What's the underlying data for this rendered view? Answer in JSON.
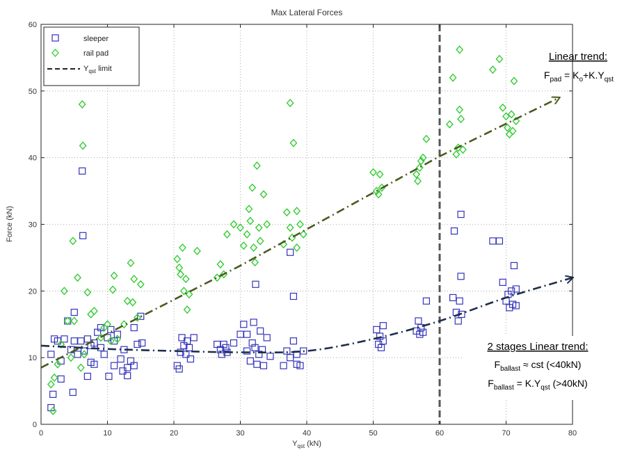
{
  "chart_data": {
    "type": "scatter",
    "title": "Max Lateral Forces",
    "xlabel": "Y",
    "xlabel_sub": "qst",
    "xlabel_unit": " (kN)",
    "ylabel": "Force (kN)",
    "xlim": [
      0,
      80
    ],
    "ylim": [
      0,
      60
    ],
    "xticks": [
      0,
      10,
      20,
      30,
      40,
      50,
      60,
      70,
      80
    ],
    "yticks": [
      0,
      10,
      20,
      30,
      40,
      50,
      60
    ],
    "grid": true,
    "legend_position": "top-left",
    "limit_line": {
      "name": "Y",
      "name_sub": "qst",
      "name_suffix": " limit",
      "x": 60,
      "color": "#555555"
    },
    "series": [
      {
        "name": "sleeper",
        "marker": "square",
        "color": "#3333bb",
        "points": [
          [
            1.5,
            10.5
          ],
          [
            1.8,
            4.5
          ],
          [
            1.5,
            2.5
          ],
          [
            2,
            12.8
          ],
          [
            2.5,
            12.5
          ],
          [
            3,
            9.5
          ],
          [
            3,
            6.8
          ],
          [
            3.5,
            12.8
          ],
          [
            4,
            15.5
          ],
          [
            4.5,
            11.2
          ],
          [
            4.8,
            4.8
          ],
          [
            5,
            16.8
          ],
          [
            5,
            12.5
          ],
          [
            5.5,
            10.5
          ],
          [
            6,
            12.5
          ],
          [
            6.2,
            38
          ],
          [
            6.3,
            28.3
          ],
          [
            6.5,
            11
          ],
          [
            7,
            7.2
          ],
          [
            7,
            12.8
          ],
          [
            7.5,
            11.8
          ],
          [
            7.5,
            9.3
          ],
          [
            8,
            9
          ],
          [
            8,
            12.2
          ],
          [
            8.5,
            13.8
          ],
          [
            9,
            11.5
          ],
          [
            9,
            14.5
          ],
          [
            9.5,
            10.5
          ],
          [
            10,
            13
          ],
          [
            10.2,
            7.2
          ],
          [
            10.5,
            14.2
          ],
          [
            11,
            8.8
          ],
          [
            11,
            12.5
          ],
          [
            11.5,
            13.5
          ],
          [
            12,
            9.8
          ],
          [
            12.3,
            8
          ],
          [
            12.5,
            11.2
          ],
          [
            13,
            7.3
          ],
          [
            13,
            8.5
          ],
          [
            13.5,
            9.5
          ],
          [
            14,
            14.5
          ],
          [
            14,
            8.8
          ],
          [
            14.5,
            12
          ],
          [
            15,
            16.2
          ],
          [
            15.2,
            12.2
          ],
          [
            20.5,
            8.8
          ],
          [
            20.8,
            8.3
          ],
          [
            21,
            10.8
          ],
          [
            21.2,
            13
          ],
          [
            21.5,
            11.8
          ],
          [
            21.8,
            10.5
          ],
          [
            22,
            12.5
          ],
          [
            22.3,
            11.5
          ],
          [
            22.5,
            9.8
          ],
          [
            23,
            13
          ],
          [
            26.5,
            12
          ],
          [
            27,
            11.2
          ],
          [
            27.2,
            10.5
          ],
          [
            27.5,
            12
          ],
          [
            27.8,
            11.5
          ],
          [
            28,
            10.8
          ],
          [
            29,
            12.2
          ],
          [
            30,
            13.5
          ],
          [
            30.5,
            15
          ],
          [
            31,
            11
          ],
          [
            31,
            13.5
          ],
          [
            31.5,
            9.5
          ],
          [
            31.8,
            12.2
          ],
          [
            32,
            15.3
          ],
          [
            32.2,
            11.5
          ],
          [
            32.3,
            21
          ],
          [
            32.5,
            9
          ],
          [
            32.8,
            10.5
          ],
          [
            33,
            14
          ],
          [
            33.3,
            11.2
          ],
          [
            33.5,
            8.8
          ],
          [
            34,
            13
          ],
          [
            34.5,
            10.2
          ],
          [
            36.5,
            8.8
          ],
          [
            37,
            11
          ],
          [
            37.5,
            10
          ],
          [
            37.5,
            25.8
          ],
          [
            38,
            12.5
          ],
          [
            38,
            19.2
          ],
          [
            38.5,
            10.5
          ],
          [
            38.5,
            9
          ],
          [
            39,
            8.8
          ],
          [
            39.5,
            11
          ],
          [
            50.5,
            14.2
          ],
          [
            50.8,
            12
          ],
          [
            51,
            13.2
          ],
          [
            51.2,
            11.5
          ],
          [
            51.5,
            14.8
          ],
          [
            51.5,
            12.5
          ],
          [
            56.5,
            14
          ],
          [
            56.8,
            15.5
          ],
          [
            57,
            13.5
          ],
          [
            57.2,
            14.5
          ],
          [
            57.5,
            13.8
          ],
          [
            58,
            18.5
          ],
          [
            62,
            19
          ],
          [
            62.2,
            29
          ],
          [
            62.5,
            16.8
          ],
          [
            62.8,
            15.5
          ],
          [
            63,
            18.5
          ],
          [
            63.2,
            31.5
          ],
          [
            63.2,
            22.2
          ],
          [
            63.3,
            16.5
          ],
          [
            68,
            27.5
          ],
          [
            69,
            27.5
          ],
          [
            69.5,
            21.3
          ],
          [
            70,
            18.5
          ],
          [
            70.3,
            19.5
          ],
          [
            70.5,
            17.5
          ],
          [
            70.8,
            20
          ],
          [
            71,
            18
          ],
          [
            71.2,
            23.8
          ],
          [
            71.5,
            20.3
          ],
          [
            71.5,
            17.8
          ]
        ]
      },
      {
        "name": "rail pad",
        "marker": "diamond",
        "color": "#33cc33",
        "points": [
          [
            1.5,
            6
          ],
          [
            1.8,
            2
          ],
          [
            2,
            7
          ],
          [
            2.5,
            9
          ],
          [
            3,
            12
          ],
          [
            3.5,
            20
          ],
          [
            4,
            15.5
          ],
          [
            4.5,
            10
          ],
          [
            4.8,
            27.5
          ],
          [
            5,
            15.5
          ],
          [
            5.5,
            22
          ],
          [
            6,
            8.5
          ],
          [
            6.2,
            48
          ],
          [
            6.3,
            41.8
          ],
          [
            6.5,
            10.5
          ],
          [
            7,
            19.8
          ],
          [
            7.5,
            16.5
          ],
          [
            8,
            17
          ],
          [
            9,
            13
          ],
          [
            9.5,
            14.5
          ],
          [
            10,
            15
          ],
          [
            10.5,
            12.5
          ],
          [
            10.8,
            20.2
          ],
          [
            11,
            22.3
          ],
          [
            11.5,
            12.8
          ],
          [
            12.5,
            15
          ],
          [
            13,
            18.5
          ],
          [
            13.5,
            24.2
          ],
          [
            13.8,
            18.3
          ],
          [
            14,
            21.8
          ],
          [
            14.5,
            16
          ],
          [
            15,
            21
          ],
          [
            20.5,
            24.8
          ],
          [
            20.8,
            23.5
          ],
          [
            21,
            22.5
          ],
          [
            21.3,
            26.5
          ],
          [
            21.5,
            20
          ],
          [
            21.8,
            21.8
          ],
          [
            22,
            17.2
          ],
          [
            22.3,
            19.5
          ],
          [
            23.5,
            26
          ],
          [
            26.5,
            22
          ],
          [
            27,
            24
          ],
          [
            27.5,
            22.5
          ],
          [
            28,
            28.5
          ],
          [
            29,
            30
          ],
          [
            30,
            29.5
          ],
          [
            30.5,
            26.8
          ],
          [
            31,
            28.5
          ],
          [
            31.3,
            32.3
          ],
          [
            31.5,
            30.5
          ],
          [
            31.8,
            35.5
          ],
          [
            32,
            26.5
          ],
          [
            32.2,
            24.3
          ],
          [
            32.5,
            38.8
          ],
          [
            32.8,
            29.5
          ],
          [
            33,
            27.5
          ],
          [
            33.5,
            34.5
          ],
          [
            34,
            30
          ],
          [
            36.5,
            27
          ],
          [
            37,
            31.8
          ],
          [
            37.5,
            29.5
          ],
          [
            37.5,
            48.2
          ],
          [
            37.8,
            28
          ],
          [
            38,
            42.2
          ],
          [
            38.5,
            32
          ],
          [
            38.5,
            26.5
          ],
          [
            39,
            30
          ],
          [
            39.5,
            28.5
          ],
          [
            50,
            37.8
          ],
          [
            50.5,
            35
          ],
          [
            50.8,
            34.5
          ],
          [
            51,
            37.5
          ],
          [
            51.3,
            35.5
          ],
          [
            56.5,
            37.5
          ],
          [
            56.7,
            36.5
          ],
          [
            57,
            38.5
          ],
          [
            57.2,
            39.5
          ],
          [
            57.5,
            40
          ],
          [
            58,
            42.8
          ],
          [
            61.5,
            45
          ],
          [
            62,
            52
          ],
          [
            62.5,
            40.5
          ],
          [
            62.8,
            41.5
          ],
          [
            63,
            56.2
          ],
          [
            63,
            47.2
          ],
          [
            63.2,
            45.8
          ],
          [
            63.5,
            41.2
          ],
          [
            68,
            53.2
          ],
          [
            69,
            54.8
          ],
          [
            69.5,
            47.5
          ],
          [
            70,
            46.2
          ],
          [
            70.2,
            44.5
          ],
          [
            70.5,
            43.5
          ],
          [
            70.8,
            46.5
          ],
          [
            71,
            44
          ],
          [
            71.2,
            51.5
          ],
          [
            71.5,
            45.5
          ]
        ]
      }
    ],
    "trend_lines": [
      {
        "id": "pad-trend",
        "color": "#4a5a1e",
        "points": [
          [
            0,
            8.5
          ],
          [
            30,
            23.8
          ],
          [
            60,
            40.2
          ],
          [
            78,
            49
          ]
        ]
      },
      {
        "id": "ballast-trend",
        "color": "#1c2e4a",
        "points": [
          [
            0,
            11.8
          ],
          [
            10,
            11.3
          ],
          [
            20,
            11
          ],
          [
            30,
            10.8
          ],
          [
            40,
            11
          ],
          [
            50,
            12.8
          ],
          [
            60,
            15.5
          ],
          [
            70,
            19
          ],
          [
            80,
            22
          ]
        ]
      }
    ]
  },
  "annotations": {
    "linear_trend_title": "Linear trend:",
    "pad_formula": {
      "f": "F",
      "f_sub": "pad",
      "mid": " = K",
      "k_sub": "o",
      "mid2": "+K.Y",
      "y_sub": "qst"
    },
    "two_stage_title": "2 stages Linear trend:",
    "ballast_formula_1": {
      "f": "F",
      "f_sub": "ballast",
      "rest": " ≈ cst  (<40kN)"
    },
    "ballast_formula_2": {
      "f": "F",
      "f_sub": "ballast",
      "mid": " = K.Y",
      "y_sub": "qst",
      "rest": " (>40kN)"
    }
  }
}
